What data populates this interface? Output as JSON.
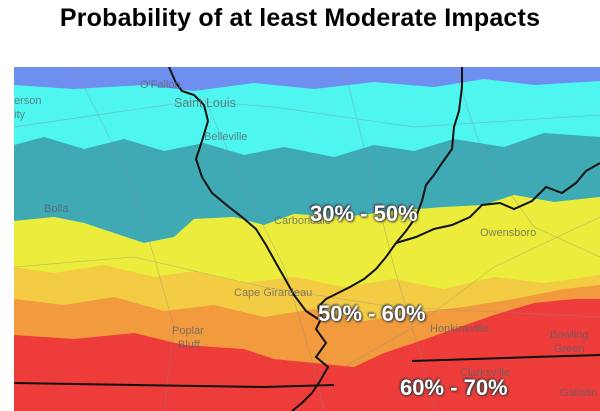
{
  "title": "Probability of at least Moderate Impacts",
  "colors": {
    "band_blue": "#6f8ff0",
    "band_cyan": "#4ff5ef",
    "band_teal": "#3fa9b4",
    "band_yellow": "#ecec3c",
    "band_gold": "#f3cc44",
    "band_orange": "#f29a3e",
    "band_red": "#ee3c3a"
  },
  "cities": {
    "ofallon": "O'Fallon",
    "saint_louis": "Saint Louis",
    "erson": "erson",
    "ity": "ity",
    "belleville": "Belleville",
    "bolla": "Bolla",
    "carbondale": "Carbondale",
    "owensboro": "Owensboro",
    "cape_girardeau": "Cape Girardeau",
    "poplar": "Poplar",
    "bluff": "Bluff",
    "hopkinsville": "Hopkinsville",
    "bowling": "Bowling",
    "green": "Green",
    "clarksville": "Clarksville",
    "gallatin": "Gallatin"
  },
  "ranges": {
    "range_30_50": "30% - 50%",
    "range_50_60": "50% -  60%",
    "range_60_70": "60% - 70%"
  }
}
